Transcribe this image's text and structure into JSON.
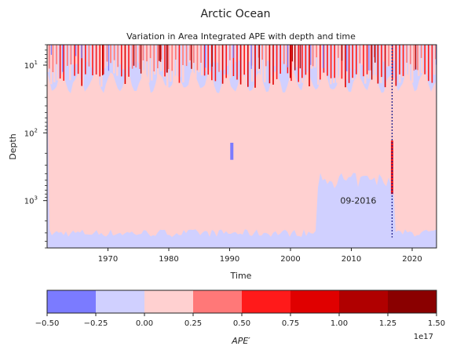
{
  "figure_title": "Arctic Ocean",
  "chart_data": {
    "type": "heatmap",
    "title": "Variation in Area Integrated APE with depth and time",
    "xlabel": "Time",
    "ylabel": "Depth",
    "x_range": [
      1960,
      2024
    ],
    "x_ticks": [
      "1970",
      "1980",
      "1990",
      "2000",
      "2010",
      "2020"
    ],
    "x_tick_values": [
      1970,
      1980,
      1990,
      2000,
      2010,
      2020
    ],
    "y_scale": "log",
    "y_inverted": true,
    "y_range": [
      5,
      5000
    ],
    "y_tick_labels": [
      {
        "base": "10",
        "exp": "1",
        "value": 10
      },
      {
        "base": "10",
        "exp": "2",
        "value": 100
      },
      {
        "base": "10",
        "exp": "3",
        "value": 1000
      }
    ],
    "annotation": {
      "text": "09-2016",
      "x": 2016.7,
      "depth_range": [
        5,
        3500
      ],
      "line_color": "#1a1a8c"
    },
    "colorbar": {
      "label": "APE′",
      "offset_label": "1e17",
      "ticks": [
        "−0.50",
        "−0.25",
        "0.00",
        "0.25",
        "0.50",
        "0.75",
        "1.00",
        "1.25",
        "1.50"
      ],
      "bins": [
        {
          "from": -0.5,
          "to": -0.25,
          "color": "#7b7bff"
        },
        {
          "from": -0.25,
          "to": 0.0,
          "color": "#d0d0ff"
        },
        {
          "from": 0.0,
          "to": 0.25,
          "color": "#ffd0d0"
        },
        {
          "from": 0.25,
          "to": 0.5,
          "color": "#ff7878"
        },
        {
          "from": 0.5,
          "to": 0.75,
          "color": "#ff1a1a"
        },
        {
          "from": 0.75,
          "to": 1.0,
          "color": "#e00000"
        },
        {
          "from": 1.0,
          "to": 1.25,
          "color": "#b00000"
        },
        {
          "from": 1.25,
          "to": 1.5,
          "color": "#8a0000"
        }
      ]
    }
  }
}
